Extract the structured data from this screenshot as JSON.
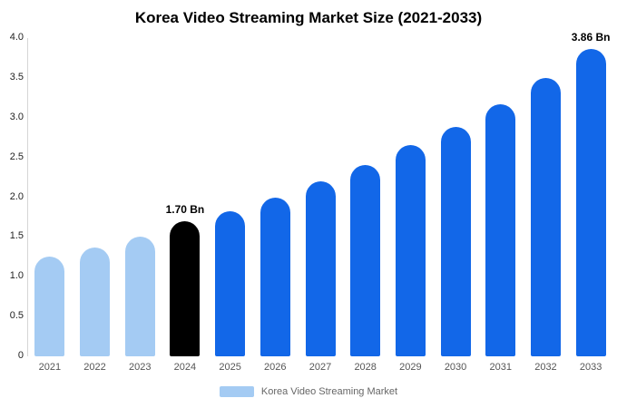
{
  "chart_data": {
    "type": "bar",
    "title": "Korea Video Streaming Market Size (2021-2033)",
    "categories": [
      "2021",
      "2022",
      "2023",
      "2024",
      "2025",
      "2026",
      "2027",
      "2028",
      "2029",
      "2030",
      "2031",
      "2032",
      "2033"
    ],
    "values": [
      1.25,
      1.37,
      1.5,
      1.7,
      1.82,
      2.0,
      2.2,
      2.4,
      2.65,
      2.88,
      3.17,
      3.5,
      3.86
    ],
    "data_labels": [
      "",
      "",
      "",
      "1.70 Bn",
      "",
      "",
      "",
      "",
      "",
      "",
      "",
      "",
      "3.86 Bn"
    ],
    "bar_color_keys": [
      "light",
      "light",
      "light",
      "black",
      "blue",
      "blue",
      "blue",
      "blue",
      "blue",
      "blue",
      "blue",
      "blue",
      "blue"
    ],
    "colors": {
      "light": "#A4CBF3",
      "black": "#000000",
      "blue": "#1267E8",
      "axis": "#D6D6D6",
      "tick_text": "#222222",
      "xlabel_text": "#555555",
      "legend_text": "#666666"
    },
    "xlabel": "",
    "ylabel": "",
    "ylim": [
      0,
      4
    ],
    "yticks": [
      0,
      0.5,
      1.0,
      1.5,
      2.0,
      2.5,
      3.0,
      3.5,
      4.0
    ],
    "ytick_labels": [
      "0",
      "0.5",
      "1.0",
      "1.5",
      "2.0",
      "2.5",
      "3.0",
      "3.5",
      "4.0"
    ],
    "grid": false,
    "legend": [
      "Korea Video Streaming Market"
    ],
    "legend_position": "bottom"
  }
}
